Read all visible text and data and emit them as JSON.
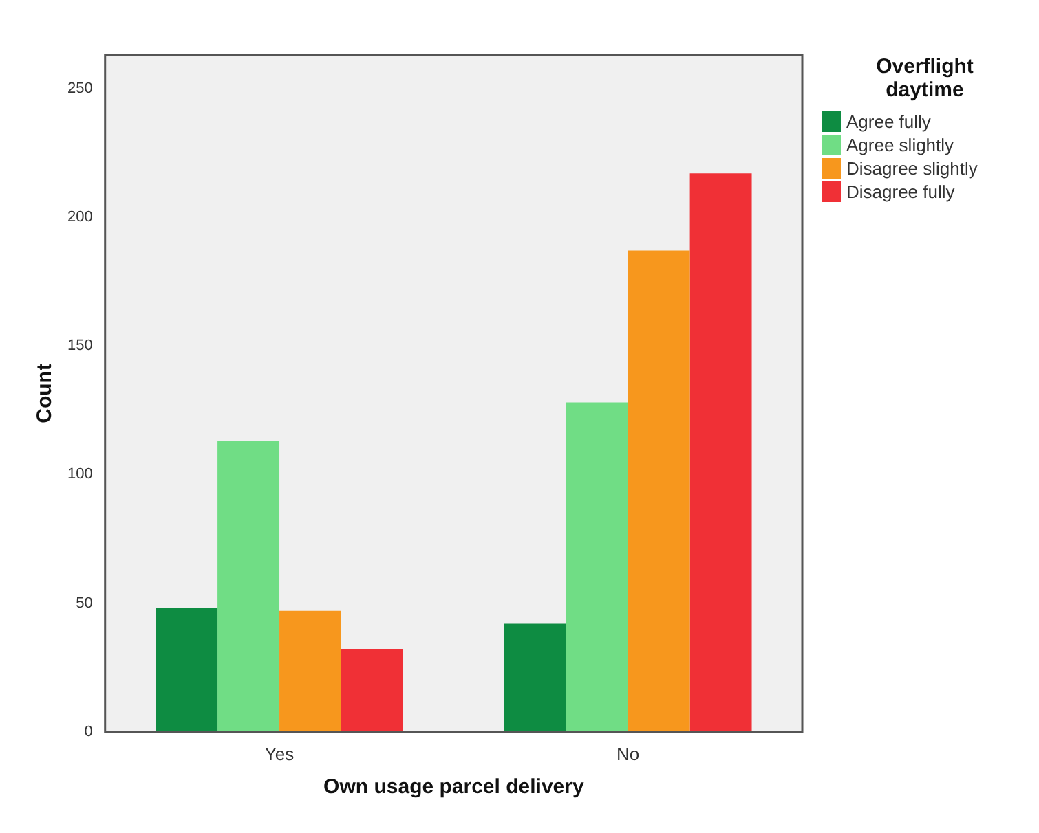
{
  "chart_data": {
    "type": "bar",
    "xlabel": "Own usage parcel delivery",
    "ylabel": "Count",
    "legend_title": "Overflight daytime",
    "categories": [
      "Yes",
      "No"
    ],
    "series": [
      {
        "name": "Agree fully",
        "color": "#0e8c42",
        "values": [
          48,
          42
        ]
      },
      {
        "name": "Agree slightly",
        "color": "#70dd85",
        "values": [
          113,
          128
        ]
      },
      {
        "name": "Disagree slightly",
        "color": "#f7971d",
        "values": [
          47,
          187
        ]
      },
      {
        "name": "Disagree fully",
        "color": "#f03036",
        "values": [
          32,
          217
        ]
      }
    ],
    "ylim": [
      0,
      263
    ],
    "yticks": [
      0,
      50,
      100,
      150,
      200,
      250
    ],
    "grid": false,
    "legend": "top right"
  }
}
